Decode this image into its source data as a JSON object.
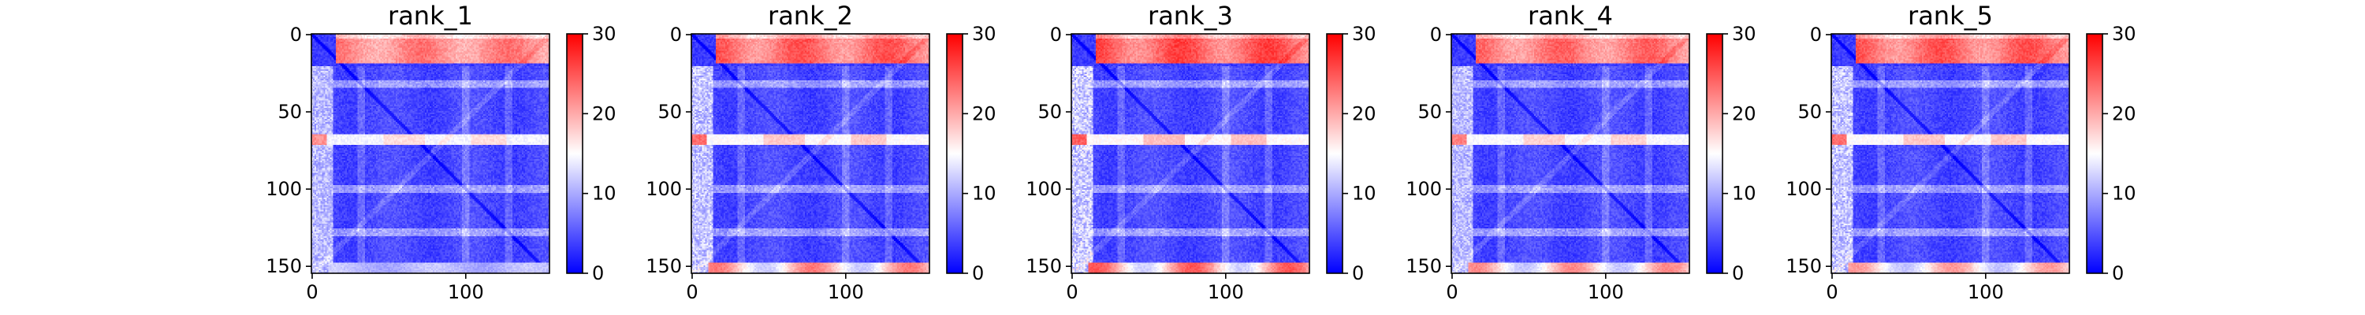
{
  "figure": {
    "background": "#ffffff"
  },
  "colormap": {
    "name": "bwr",
    "low": "#0000ff",
    "mid": "#ffffff",
    "high": "#ff0000"
  },
  "chart_data": [
    {
      "type": "heatmap",
      "title": "rank_1",
      "matrix_size": 155,
      "xlim": [
        0,
        154
      ],
      "ylim": [
        154,
        0
      ],
      "xticks": [
        0,
        100
      ],
      "xtick_labels": [
        "0",
        "100"
      ],
      "yticks": [
        0,
        50,
        100,
        150
      ],
      "ytick_labels": [
        "0",
        "50",
        "100",
        "150"
      ],
      "colorbar": {
        "vmin": 0,
        "vmax": 30,
        "ticks": [
          0,
          10,
          20,
          30
        ],
        "tick_labels": [
          "0",
          "10",
          "20",
          "30"
        ]
      },
      "features": {
        "top_band_rows": [
          0,
          18
        ],
        "top_band_value": 22,
        "left_band_value": 14,
        "bottom_band_value": 11,
        "stripe_rows": [
          68
        ],
        "stripe_value": 20
      }
    },
    {
      "type": "heatmap",
      "title": "rank_2",
      "matrix_size": 155,
      "xlim": [
        0,
        154
      ],
      "ylim": [
        154,
        0
      ],
      "xticks": [
        0,
        100
      ],
      "xtick_labels": [
        "0",
        "100"
      ],
      "yticks": [
        0,
        50,
        100,
        150
      ],
      "ytick_labels": [
        "0",
        "50",
        "100",
        "150"
      ],
      "colorbar": {
        "vmin": 0,
        "vmax": 30,
        "ticks": [
          0,
          10,
          20,
          30
        ],
        "tick_labels": [
          "0",
          "10",
          "20",
          "30"
        ]
      },
      "features": {
        "top_band_rows": [
          0,
          18
        ],
        "top_band_value": 24,
        "left_band_value": 15,
        "bottom_band_value": 22,
        "stripe_rows": [
          68
        ],
        "stripe_value": 22
      }
    },
    {
      "type": "heatmap",
      "title": "rank_3",
      "matrix_size": 155,
      "xlim": [
        0,
        154
      ],
      "ylim": [
        154,
        0
      ],
      "xticks": [
        0,
        100
      ],
      "xtick_labels": [
        "0",
        "100"
      ],
      "yticks": [
        0,
        50,
        100,
        150
      ],
      "ytick_labels": [
        "0",
        "50",
        "100",
        "150"
      ],
      "colorbar": {
        "vmin": 0,
        "vmax": 30,
        "ticks": [
          0,
          10,
          20,
          30
        ],
        "tick_labels": [
          "0",
          "10",
          "20",
          "30"
        ]
      },
      "features": {
        "top_band_rows": [
          0,
          18
        ],
        "top_band_value": 25,
        "left_band_value": 16,
        "bottom_band_value": 24,
        "stripe_rows": [
          68
        ],
        "stripe_value": 23
      }
    },
    {
      "type": "heatmap",
      "title": "rank_4",
      "matrix_size": 155,
      "xlim": [
        0,
        154
      ],
      "ylim": [
        154,
        0
      ],
      "xticks": [
        0,
        100
      ],
      "xtick_labels": [
        "0",
        "100"
      ],
      "yticks": [
        0,
        50,
        100,
        150
      ],
      "ytick_labels": [
        "0",
        "50",
        "100",
        "150"
      ],
      "colorbar": {
        "vmin": 0,
        "vmax": 30,
        "ticks": [
          0,
          10,
          20,
          30
        ],
        "tick_labels": [
          "0",
          "10",
          "20",
          "30"
        ]
      },
      "features": {
        "top_band_rows": [
          0,
          18
        ],
        "top_band_value": 23,
        "left_band_value": 14,
        "bottom_band_value": 21,
        "stripe_rows": [
          68
        ],
        "stripe_value": 21
      }
    },
    {
      "type": "heatmap",
      "title": "rank_5",
      "matrix_size": 155,
      "xlim": [
        0,
        154
      ],
      "ylim": [
        154,
        0
      ],
      "xticks": [
        0,
        100
      ],
      "xtick_labels": [
        "0",
        "100"
      ],
      "yticks": [
        0,
        50,
        100,
        150
      ],
      "ytick_labels": [
        "0",
        "50",
        "100",
        "150"
      ],
      "colorbar": {
        "vmin": 0,
        "vmax": 30,
        "ticks": [
          0,
          10,
          20,
          30
        ],
        "tick_labels": [
          "0",
          "10",
          "20",
          "30"
        ]
      },
      "features": {
        "top_band_rows": [
          0,
          18
        ],
        "top_band_value": 24,
        "left_band_value": 15,
        "bottom_band_value": 20,
        "stripe_rows": [
          68
        ],
        "stripe_value": 22
      }
    }
  ]
}
